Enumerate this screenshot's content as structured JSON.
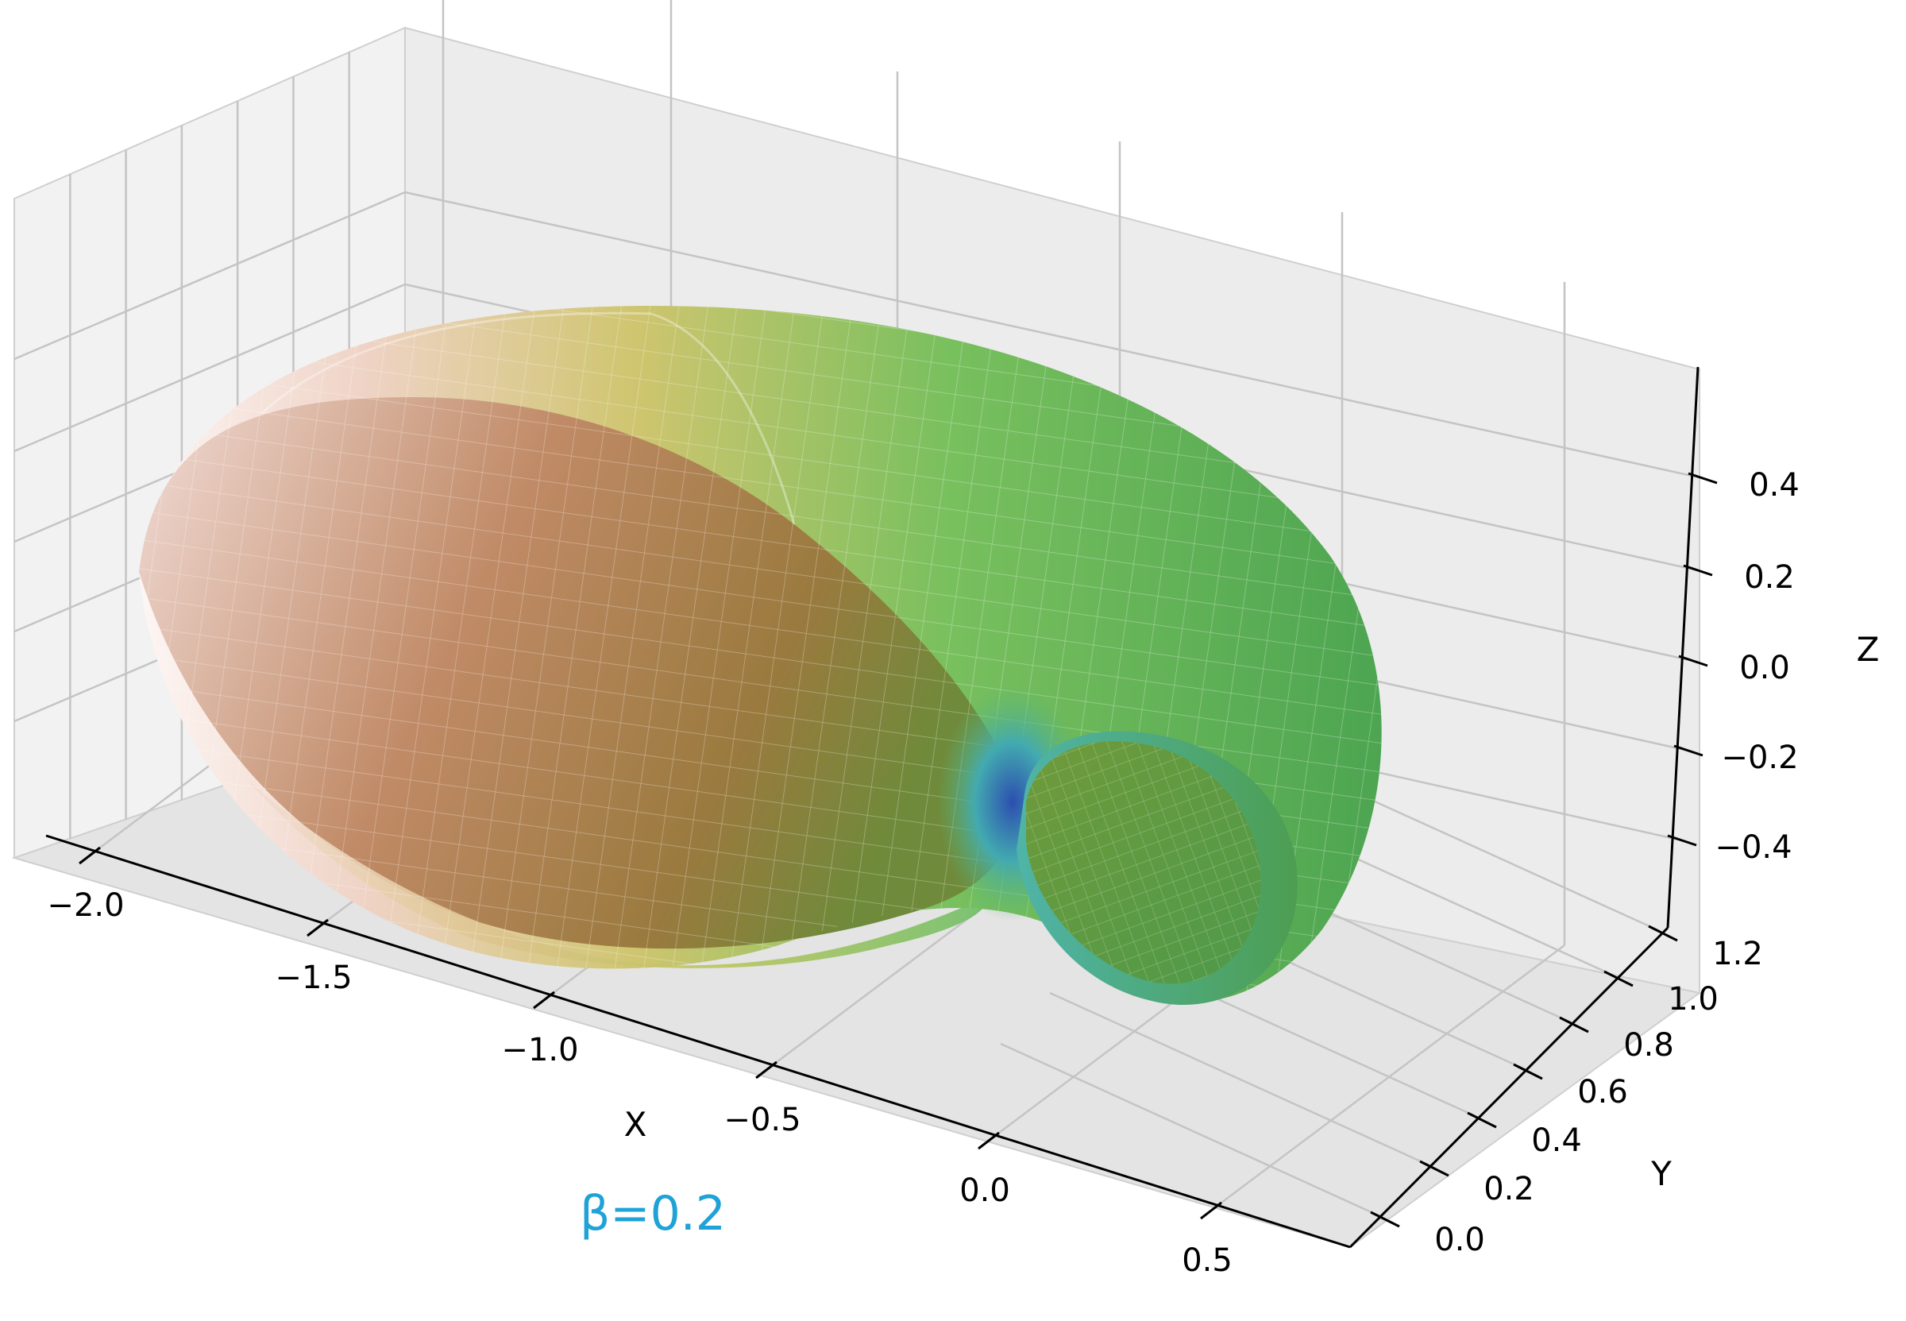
{
  "chart_data": {
    "type": "surface3d",
    "title": "",
    "annotation": "β=0.2",
    "annotation_color": "#1fa2d6",
    "xlabel": "X",
    "ylabel": "Y",
    "zlabel": "Z",
    "xlim": [
      -2.1,
      0.7
    ],
    "ylim": [
      0.0,
      1.3
    ],
    "zlim": [
      -0.55,
      0.55
    ],
    "x_ticks": [
      -2.0,
      -1.5,
      -1.0,
      -0.5,
      0.0,
      0.5
    ],
    "x_tick_labels": [
      "−2.0",
      "−1.5",
      "−1.0",
      "−0.5",
      "0.0",
      "0.5"
    ],
    "y_ticks": [
      0.0,
      0.2,
      0.4,
      0.6,
      0.8,
      1.0,
      1.2
    ],
    "y_tick_labels": [
      "0.0",
      "0.2",
      "0.4",
      "0.6",
      "0.8",
      "1.0",
      "1.2"
    ],
    "z_ticks": [
      -0.4,
      -0.2,
      0.0,
      0.2,
      0.4
    ],
    "z_tick_labels": [
      "−0.4",
      "−0.2",
      "0.0",
      "0.2",
      "0.4"
    ],
    "grid": true,
    "surface": {
      "shape": "horn torus (self-touching at origin)",
      "colormap_colors": [
        "#ffffff",
        "#e8c2b0",
        "#c9c46a",
        "#7cc25e",
        "#4aaf9a",
        "#2f4fa8"
      ]
    }
  }
}
